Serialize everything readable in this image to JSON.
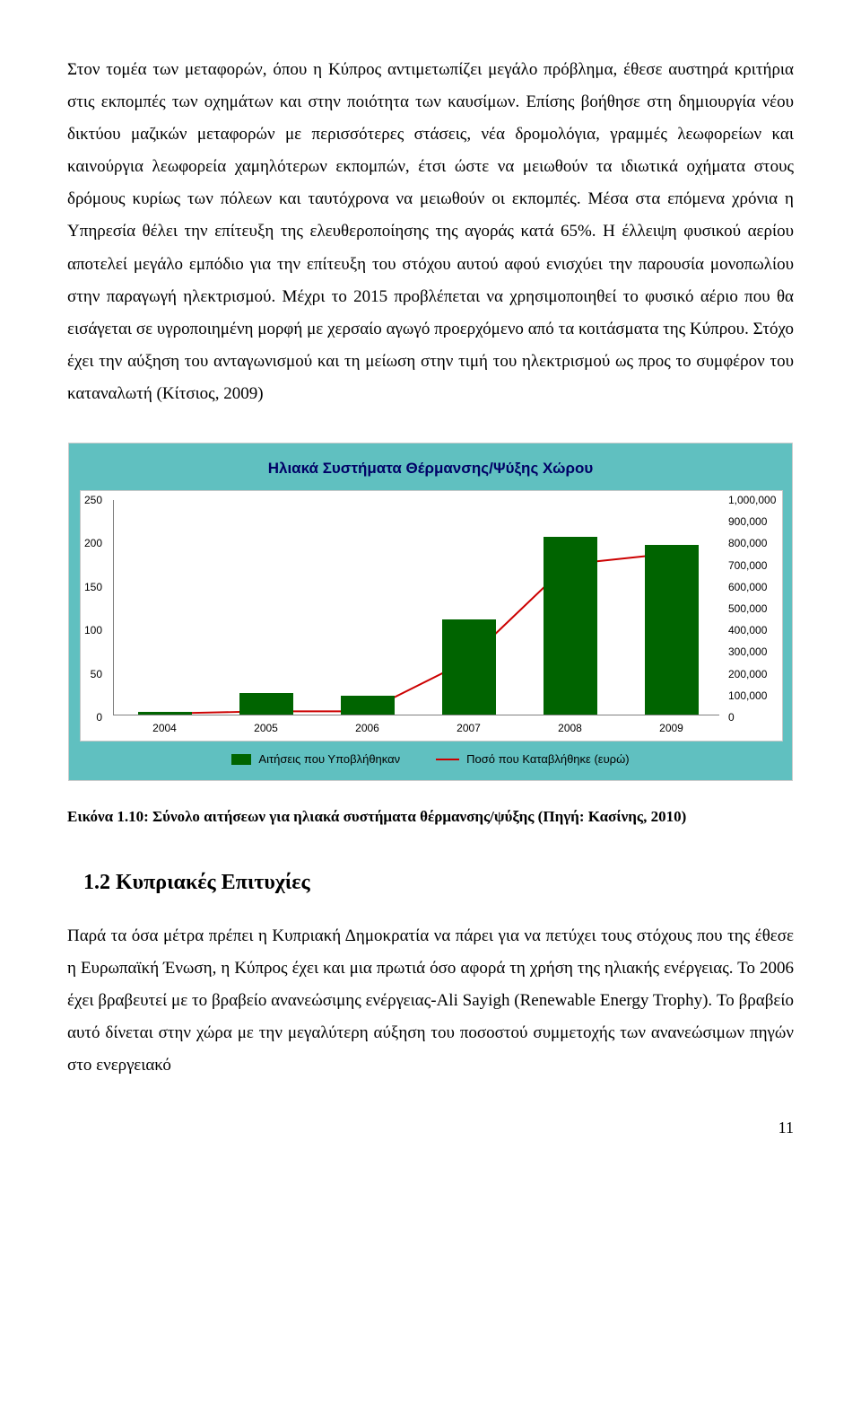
{
  "para1": "Στον τομέα των μεταφορών, όπου η Κύπρος αντιμετωπίζει μεγάλο πρόβλημα, έθεσε αυστηρά κριτήρια στις εκπομπές των οχημάτων και στην ποιότητα των καυσίμων. Επίσης βοήθησε στη δημιουργία νέου δικτύου μαζικών μεταφορών με περισσότερες στάσεις, νέα δρομολόγια, γραμμές λεωφορείων και καινούργια λεωφορεία χαμηλότερων εκπομπών, έτσι ώστε να μειωθούν τα ιδιωτικά οχήματα στους δρόμους κυρίως των πόλεων και ταυτόχρονα να μειωθούν οι εκπομπές. Μέσα στα επόμενα χρόνια η Υπηρεσία θέλει την επίτευξη της ελευθεροποίησης της αγοράς κατά 65%. Η έλλειψη φυσικού αερίου αποτελεί μεγάλο εμπόδιο για την επίτευξη του στόχου αυτού αφού ενισχύει την παρουσία μονοπωλίου στην παραγωγή ηλεκτρισμού. Μέχρι το 2015 προβλέπεται να χρησιμοποιηθεί το φυσικό αέριο που θα εισάγεται σε υγροποιημένη μορφή με χερσαίο αγωγό προερχόμενο από τα κοιτάσματα της Κύπρου. Στόχο έχει την αύξηση του ανταγωνισμού και τη μείωση στην τιμή του ηλεκτρισμού ως προς το συμφέρον του καταναλωτή (Κίτσιος, 2009)",
  "chart": {
    "type": "bar-line-combo",
    "title": "Ηλιακά Συστήματα Θέρμανσης/Ψύξης Χώρου",
    "title_color": "#000066",
    "background_color": "#60c0c0",
    "plot_background": "#ffffff",
    "bar_color": "#006400",
    "line_color": "#cc0000",
    "axis_color": "#808080",
    "categories": [
      "2004",
      "2005",
      "2006",
      "2007",
      "2008",
      "2009"
    ],
    "bar_values": [
      3,
      25,
      22,
      110,
      205,
      195
    ],
    "line_values": [
      5000,
      15000,
      15000,
      250000,
      700000,
      750000
    ],
    "y_left_max": 250,
    "y_left_ticks": [
      0,
      50,
      100,
      150,
      200,
      250
    ],
    "y_right_max": 1000000,
    "y_right_ticks_labels": [
      "0",
      "100,000",
      "200,000",
      "300,000",
      "400,000",
      "500,000",
      "600,000",
      "700,000",
      "800,000",
      "900,000",
      "1,000,000"
    ],
    "legend": {
      "bar": "Αιτήσεις που Υποβλήθηκαν",
      "line": "Ποσό που Καταβλήθηκε (ευρώ)"
    }
  },
  "caption": "Εικόνα 1.10: Σύνολο αιτήσεων για ηλιακά συστήματα θέρμανσης/ψύξης (Πηγή: Κασίνης, 2010)",
  "section_head": "1.2  Κυπριακές Επιτυχίες",
  "para2": "Παρά τα όσα μέτρα πρέπει η Κυπριακή Δημοκρατία να πάρει για να πετύχει τους στόχους που της έθεσε η Ευρωπαϊκή Ένωση, η Κύπρος έχει και μια πρωτιά όσο αφορά τη χρήση της ηλιακής ενέργειας. Το 2006 έχει βραβευτεί με το βραβείο ανανεώσιμης ενέργειας-Ali Sayigh (Renewable Energy Trophy). Το βραβείο αυτό δίνεται στην χώρα με την μεγαλύτερη αύξηση του ποσοστού συμμετοχής των ανανεώσιμων πηγών στο ενεργειακό",
  "page_number": "11"
}
